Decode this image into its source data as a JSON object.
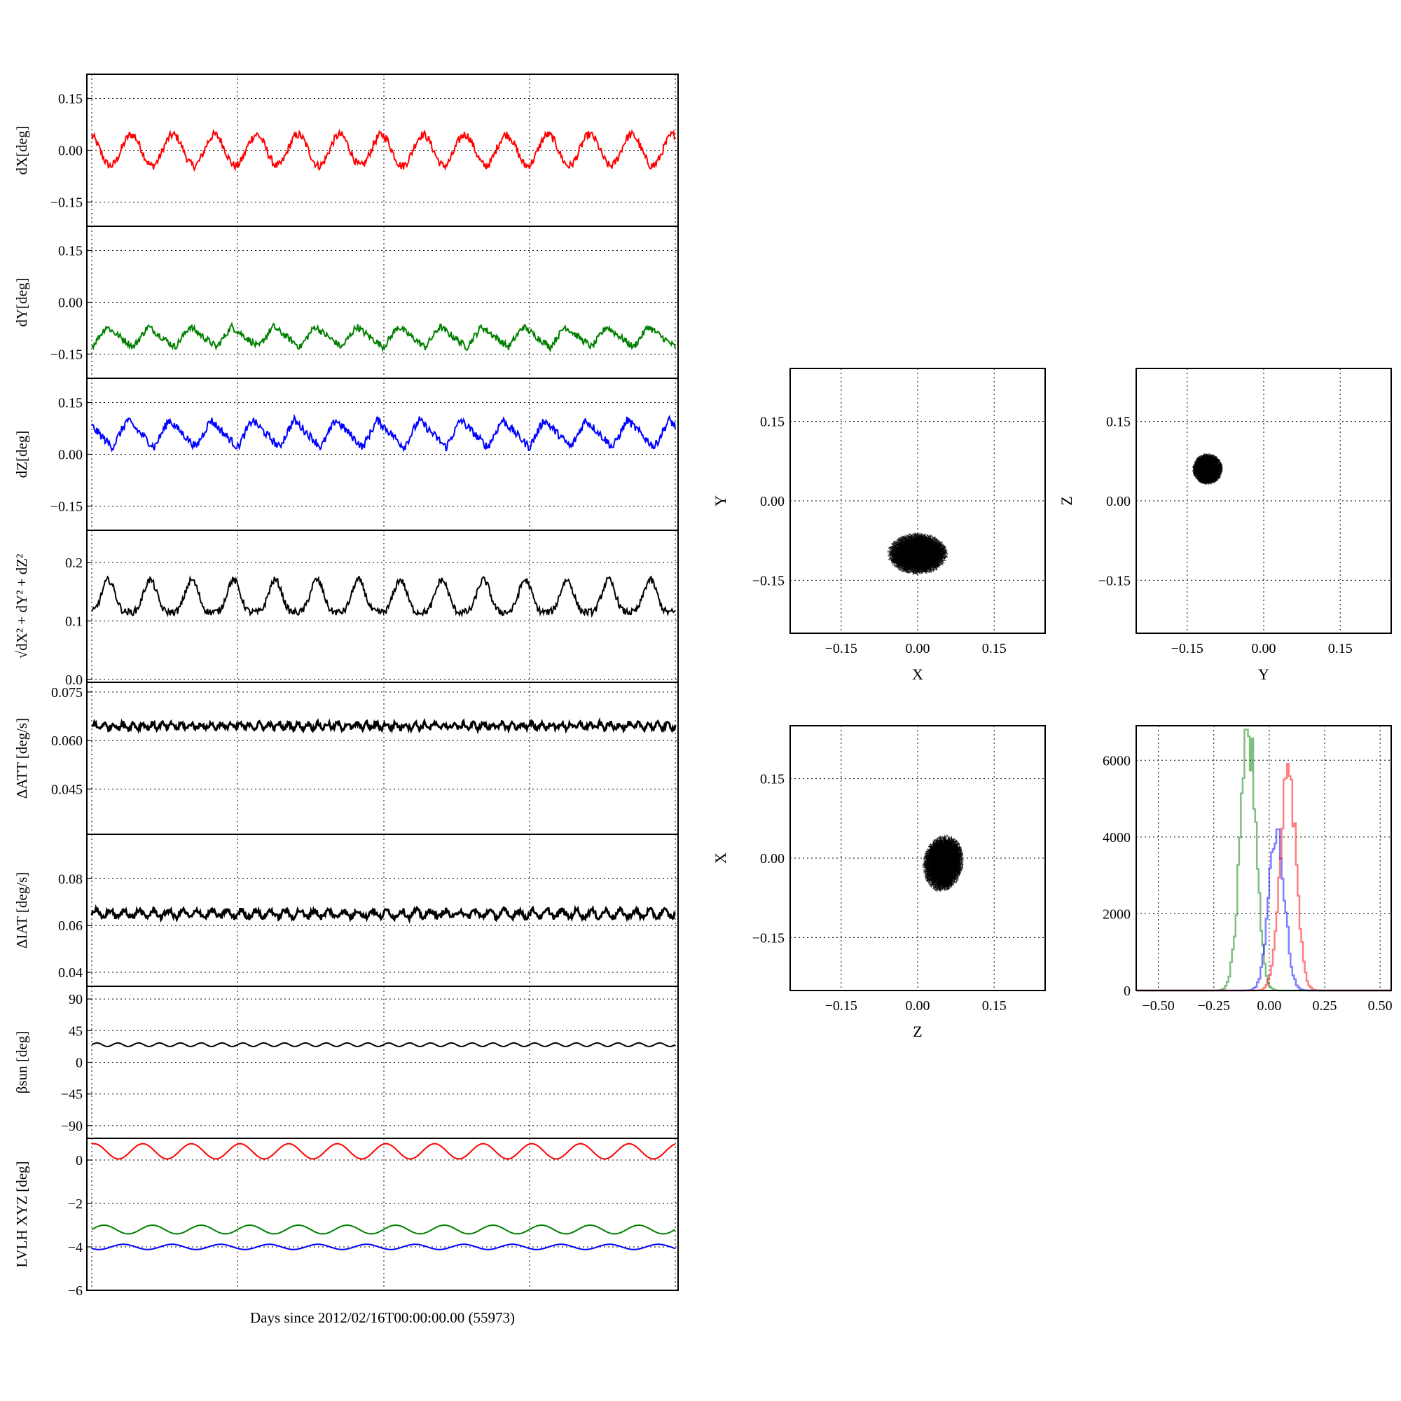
{
  "xlabel": "Days since 2012/02/16T00:00:00.00 (55973)",
  "colors": {
    "red": "#ff0000",
    "green": "#008000",
    "blue": "#0000ff",
    "black": "#000000"
  },
  "time_panels": [
    {
      "id": "dx",
      "ylabel": "dX[deg]",
      "ylim": [
        -0.22,
        0.22
      ],
      "yticks": [
        -0.15,
        0.0,
        0.15
      ],
      "ytick_labels": [
        "−0.15",
        "0.00",
        "0.15"
      ],
      "series": [
        {
          "color": "red",
          "type": "wave",
          "offset": 0.0,
          "amp": 0.045,
          "cycles": 14,
          "phase": 0.3,
          "noise": 0.012
        }
      ]
    },
    {
      "id": "dy",
      "ylabel": "dY[deg]",
      "ylim": [
        -0.22,
        0.22
      ],
      "yticks": [
        -0.15,
        0.0,
        0.15
      ],
      "ytick_labels": [
        "−0.15",
        "0.00",
        "0.15"
      ],
      "series": [
        {
          "color": "green",
          "type": "saw",
          "offset": -0.1,
          "amp": 0.03,
          "cycles": 14,
          "phase": 0.0,
          "noise": 0.01
        }
      ]
    },
    {
      "id": "dz",
      "ylabel": "dZ[deg]",
      "ylim": [
        -0.22,
        0.22
      ],
      "yticks": [
        -0.15,
        0.0,
        0.15
      ],
      "ytick_labels": [
        "−0.15",
        "0.00",
        "0.15"
      ],
      "series": [
        {
          "color": "blue",
          "type": "saw",
          "offset": 0.06,
          "amp": 0.04,
          "cycles": 14,
          "phase": 0.5,
          "noise": 0.012
        }
      ]
    },
    {
      "id": "mag",
      "ylabel": "√dX² + dY² + dZ²",
      "ylim": [
        -0.005,
        0.255
      ],
      "yticks": [
        0.0,
        0.1,
        0.2
      ],
      "ytick_labels": [
        "0.0",
        "0.1",
        "0.2"
      ],
      "series": [
        {
          "color": "black",
          "type": "peaks",
          "offset": 0.115,
          "amp": 0.055,
          "cycles": 14,
          "phase": 0.1,
          "noise": 0.006
        }
      ]
    },
    {
      "id": "datt",
      "ylabel": "ΔATT [deg/s]",
      "ylim": [
        0.031,
        0.078
      ],
      "yticks": [
        0.045,
        0.06,
        0.075
      ],
      "ytick_labels": [
        "0.045",
        "0.060",
        "0.075"
      ],
      "series": [
        {
          "color": "black",
          "type": "flat",
          "offset": 0.0645,
          "amp": 0.0008,
          "cycles": 60,
          "phase": 0.0,
          "noise": 0.0008
        }
      ]
    },
    {
      "id": "diat",
      "ylabel": "ΔIAT [deg/s]",
      "ylim": [
        0.034,
        0.099
      ],
      "yticks": [
        0.04,
        0.06,
        0.08
      ],
      "ytick_labels": [
        "0.04",
        "0.06",
        "0.08"
      ],
      "series": [
        {
          "color": "black",
          "type": "flat",
          "offset": 0.065,
          "amp": 0.0015,
          "cycles": 40,
          "phase": 0.0,
          "noise": 0.0012
        }
      ]
    },
    {
      "id": "beta",
      "ylabel": "βsun [deg]",
      "ylim": [
        -108,
        108
      ],
      "yticks": [
        -90,
        -45,
        0,
        45,
        90
      ],
      "ytick_labels": [
        "−90",
        "−45",
        "0",
        "45",
        "90"
      ],
      "series": [
        {
          "color": "black",
          "type": "wave",
          "offset": 25,
          "amp": 2.5,
          "cycles": 28,
          "phase": 0.0,
          "noise": 0.0
        }
      ]
    },
    {
      "id": "lvlh",
      "ylabel": "LVLH XYZ [deg]",
      "ylim": [
        -6,
        1
      ],
      "yticks": [
        -6,
        -4,
        -2,
        0
      ],
      "ytick_labels": [
        "−6",
        "−4",
        "−2",
        "0"
      ],
      "series": [
        {
          "color": "red",
          "type": "wave",
          "offset": 0.4,
          "amp": 0.35,
          "cycles": 12,
          "phase": 0.2,
          "noise": 0.0
        },
        {
          "color": "green",
          "type": "wave",
          "offset": -3.2,
          "amp": 0.2,
          "cycles": 12,
          "phase": 0.0,
          "noise": 0.0
        },
        {
          "color": "blue",
          "type": "wave",
          "offset": -4.0,
          "amp": 0.12,
          "cycles": 12,
          "phase": 0.6,
          "noise": 0.0
        }
      ]
    }
  ],
  "scatter_panels": [
    {
      "id": "xy",
      "xlabel": "X",
      "ylabel": "Y",
      "xlim": [
        -0.25,
        0.25
      ],
      "ylim": [
        -0.25,
        0.25
      ],
      "xticks": [
        -0.15,
        0.0,
        0.15
      ],
      "yticks": [
        -0.15,
        0.0,
        0.15
      ],
      "tick_labels": [
        "−0.15",
        "0.00",
        "0.15"
      ],
      "center": [
        0.0,
        -0.1
      ],
      "spread": [
        0.06,
        0.04
      ],
      "tilt": 0.0
    },
    {
      "id": "yz",
      "xlabel": "Y",
      "ylabel": "Z",
      "xlim": [
        -0.25,
        0.25
      ],
      "ylim": [
        -0.25,
        0.25
      ],
      "xticks": [
        -0.15,
        0.0,
        0.15
      ],
      "yticks": [
        -0.15,
        0.0,
        0.15
      ],
      "tick_labels": [
        "−0.15",
        "0.00",
        "0.15"
      ],
      "center": [
        -0.11,
        0.06
      ],
      "spread": [
        0.03,
        0.03
      ],
      "tilt": 0.9
    },
    {
      "id": "zx",
      "xlabel": "Z",
      "ylabel": "X",
      "xlim": [
        -0.25,
        0.25
      ],
      "ylim": [
        -0.25,
        0.25
      ],
      "xticks": [
        -0.15,
        0.0,
        0.15
      ],
      "yticks": [
        -0.15,
        0.0,
        0.15
      ],
      "tick_labels": [
        "−0.15",
        "0.00",
        "0.15"
      ],
      "center": [
        0.05,
        -0.01
      ],
      "spread": [
        0.04,
        0.055
      ],
      "tilt": -0.2
    }
  ],
  "histogram": {
    "xlim": [
      -0.6,
      0.55
    ],
    "ylim": [
      0,
      6900
    ],
    "xticks": [
      -0.5,
      -0.25,
      0.0,
      0.25,
      0.5
    ],
    "xtick_labels": [
      "−0.50",
      "−0.25",
      "0.00",
      "0.25",
      "0.50"
    ],
    "yticks": [
      0,
      2000,
      4000,
      6000
    ],
    "ytick_labels": [
      "0",
      "2000",
      "4000",
      "6000"
    ],
    "series": [
      {
        "color": "green",
        "center": -0.1,
        "width": 0.035,
        "peak": 6800
      },
      {
        "color": "blue",
        "center": 0.03,
        "width": 0.035,
        "peak": 4200
      },
      {
        "color": "red",
        "center": 0.08,
        "width": 0.035,
        "peak": 6000
      }
    ]
  }
}
